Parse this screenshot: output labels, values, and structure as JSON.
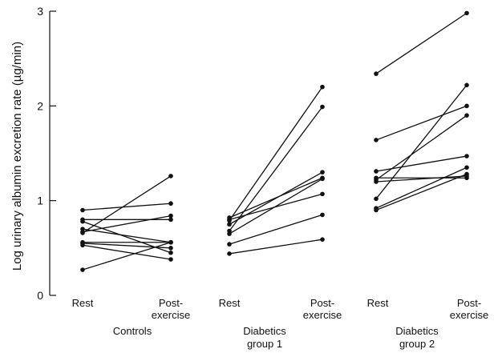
{
  "chart_data": {
    "type": "line",
    "title": "",
    "ylabel": "Log urinary albumin excretion rate (µg/min)",
    "ylim": [
      0,
      3
    ],
    "yticks": [
      0,
      1,
      2,
      3
    ],
    "grid": false,
    "groups": [
      {
        "label_lines": [
          "Controls"
        ],
        "conditions": [
          "Rest",
          "Post-\nexercise"
        ],
        "pairs": [
          [
            0.9,
            0.97
          ],
          [
            0.8,
            0.8
          ],
          [
            0.78,
            0.45
          ],
          [
            0.7,
            0.56
          ],
          [
            0.67,
            0.84
          ],
          [
            0.66,
            1.26
          ],
          [
            0.56,
            0.56
          ],
          [
            0.55,
            0.5
          ],
          [
            0.53,
            0.38
          ],
          [
            0.27,
            0.56
          ]
        ]
      },
      {
        "label_lines": [
          "Diabetics",
          "group 1"
        ],
        "conditions": [
          "Rest",
          "Post-\nexercise"
        ],
        "pairs": [
          [
            0.82,
            1.24
          ],
          [
            0.79,
            2.2
          ],
          [
            0.75,
            1.3
          ],
          [
            0.68,
            1.99
          ],
          [
            0.65,
            1.23
          ],
          [
            0.54,
            0.85
          ],
          [
            0.44,
            0.59
          ],
          [
            0.8,
            1.07
          ]
        ]
      },
      {
        "label_lines": [
          "Diabetics",
          "group 2"
        ],
        "conditions": [
          "Rest",
          "Post-\nexercise"
        ],
        "pairs": [
          [
            2.34,
            2.98
          ],
          [
            1.64,
            2.0
          ],
          [
            1.31,
            1.47
          ],
          [
            1.24,
            1.24
          ],
          [
            1.22,
            1.9
          ],
          [
            1.02,
            2.22
          ],
          [
            0.92,
            1.35
          ],
          [
            0.9,
            1.28
          ],
          [
            1.2,
            1.26
          ]
        ]
      }
    ]
  }
}
